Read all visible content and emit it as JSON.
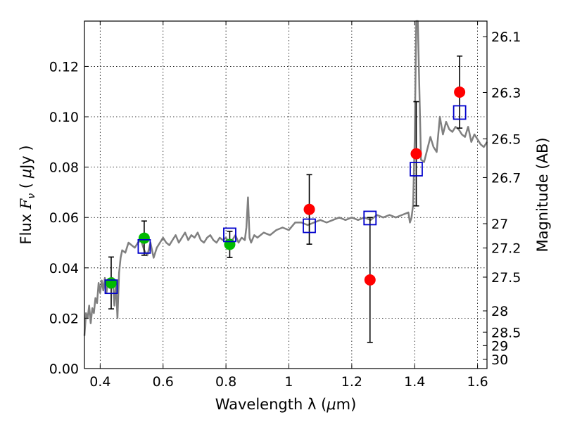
{
  "chart_data": {
    "type": "scatter",
    "title": "",
    "xlabel_prefix": "Wavelength  λ (",
    "xlabel_mu": "μ",
    "xlabel_suffix": "m)",
    "ylabel_prefix": "Flux  ",
    "ylabel_F": "F",
    "ylabel_nu": "ν",
    "ylabel_open": "  ( ",
    "ylabel_mu": "μ",
    "ylabel_suffix": "Jy )",
    "y2label": "Magnitude (AB)",
    "xlim": [
      0.35,
      1.63
    ],
    "ylim": [
      0.0,
      0.138
    ],
    "grid": true,
    "x_ticks": [
      {
        "v": 0.4,
        "label": "0.4"
      },
      {
        "v": 0.6,
        "label": "0.6"
      },
      {
        "v": 0.8,
        "label": "0.8"
      },
      {
        "v": 1.0,
        "label": "1"
      },
      {
        "v": 1.2,
        "label": "1.2"
      },
      {
        "v": 1.4,
        "label": "1.4"
      },
      {
        "v": 1.6,
        "label": "1.6"
      }
    ],
    "y_ticks": [
      {
        "v": 0.0,
        "label": "0.00"
      },
      {
        "v": 0.02,
        "label": "0.02"
      },
      {
        "v": 0.04,
        "label": "0.04"
      },
      {
        "v": 0.06,
        "label": "0.06"
      },
      {
        "v": 0.08,
        "label": "0.08"
      },
      {
        "v": 0.1,
        "label": "0.10"
      },
      {
        "v": 0.12,
        "label": "0.12"
      }
    ],
    "mag_ticks": [
      {
        "mag": 26.1,
        "label": "26.1"
      },
      {
        "mag": 26.3,
        "label": "26.3"
      },
      {
        "mag": 26.5,
        "label": "26.5"
      },
      {
        "mag": 26.7,
        "label": "26.7"
      },
      {
        "mag": 27.0,
        "label": "27"
      },
      {
        "mag": 27.2,
        "label": "27.2"
      },
      {
        "mag": 27.5,
        "label": "27.5"
      },
      {
        "mag": 28.0,
        "label": "28"
      },
      {
        "mag": 28.5,
        "label": "28.5"
      },
      {
        "mag": 29.0,
        "label": "29"
      },
      {
        "mag": 30.0,
        "label": "30"
      }
    ],
    "spectrum": {
      "color": "#808080",
      "x": [
        0.35,
        0.355,
        0.36,
        0.365,
        0.37,
        0.375,
        0.38,
        0.385,
        0.39,
        0.395,
        0.4,
        0.405,
        0.41,
        0.415,
        0.42,
        0.425,
        0.43,
        0.435,
        0.44,
        0.445,
        0.45,
        0.455,
        0.46,
        0.465,
        0.47,
        0.48,
        0.49,
        0.5,
        0.51,
        0.52,
        0.53,
        0.54,
        0.55,
        0.56,
        0.57,
        0.58,
        0.59,
        0.6,
        0.61,
        0.62,
        0.63,
        0.64,
        0.65,
        0.66,
        0.67,
        0.68,
        0.69,
        0.7,
        0.71,
        0.72,
        0.73,
        0.74,
        0.75,
        0.76,
        0.77,
        0.78,
        0.79,
        0.8,
        0.81,
        0.82,
        0.83,
        0.84,
        0.85,
        0.86,
        0.865,
        0.87,
        0.875,
        0.88,
        0.89,
        0.9,
        0.92,
        0.94,
        0.96,
        0.98,
        1.0,
        1.02,
        1.04,
        1.06,
        1.08,
        1.1,
        1.12,
        1.14,
        1.16,
        1.18,
        1.2,
        1.22,
        1.24,
        1.26,
        1.28,
        1.3,
        1.32,
        1.34,
        1.36,
        1.38,
        1.385,
        1.39,
        1.395,
        1.4,
        1.405,
        1.41,
        1.42,
        1.43,
        1.44,
        1.45,
        1.46,
        1.47,
        1.48,
        1.49,
        1.5,
        1.51,
        1.52,
        1.53,
        1.54,
        1.55,
        1.56,
        1.57,
        1.58,
        1.59,
        1.6,
        1.61,
        1.62,
        1.63
      ],
      "y": [
        0.013,
        0.022,
        0.02,
        0.025,
        0.018,
        0.024,
        0.022,
        0.028,
        0.026,
        0.034,
        0.03,
        0.035,
        0.031,
        0.036,
        0.03,
        0.035,
        0.032,
        0.034,
        0.036,
        0.025,
        0.034,
        0.02,
        0.038,
        0.044,
        0.047,
        0.046,
        0.05,
        0.049,
        0.048,
        0.05,
        0.051,
        0.047,
        0.045,
        0.05,
        0.044,
        0.048,
        0.05,
        0.052,
        0.05,
        0.049,
        0.051,
        0.053,
        0.05,
        0.052,
        0.054,
        0.051,
        0.053,
        0.052,
        0.054,
        0.051,
        0.05,
        0.052,
        0.053,
        0.051,
        0.05,
        0.052,
        0.051,
        0.052,
        0.05,
        0.051,
        0.053,
        0.05,
        0.052,
        0.051,
        0.056,
        0.068,
        0.052,
        0.05,
        0.053,
        0.052,
        0.054,
        0.053,
        0.055,
        0.056,
        0.055,
        0.058,
        0.058,
        0.057,
        0.058,
        0.059,
        0.058,
        0.059,
        0.06,
        0.059,
        0.06,
        0.059,
        0.06,
        0.059,
        0.061,
        0.06,
        0.061,
        0.06,
        0.061,
        0.062,
        0.058,
        0.06,
        0.065,
        0.09,
        0.138,
        0.138,
        0.083,
        0.082,
        0.087,
        0.092,
        0.088,
        0.086,
        0.1,
        0.093,
        0.098,
        0.095,
        0.094,
        0.096,
        0.095,
        0.093,
        0.092,
        0.096,
        0.09,
        0.093,
        0.091,
        0.089,
        0.088,
        0.09
      ]
    },
    "series": [
      {
        "color": "#00bb00",
        "marker": "circle",
        "points": [
          {
            "x": 0.435,
            "y": 0.034,
            "err": 0.0103
          },
          {
            "x": 0.54,
            "y": 0.0518,
            "err": 0.0068
          },
          {
            "x": 0.812,
            "y": 0.0493,
            "err": 0.0052
          }
        ]
      },
      {
        "color": "#ff0000",
        "marker": "circle",
        "points": [
          {
            "x": 1.065,
            "y": 0.0632,
            "err": 0.0138
          },
          {
            "x": 1.258,
            "y": 0.0352,
            "err": 0.0248
          },
          {
            "x": 1.405,
            "y": 0.0853,
            "err": 0.0207
          },
          {
            "x": 1.543,
            "y": 0.1098,
            "err": 0.0143
          }
        ]
      },
      {
        "color": "#0000cc",
        "marker": "square-open",
        "points": [
          {
            "x": 0.435,
            "y": 0.0325
          },
          {
            "x": 0.54,
            "y": 0.0485
          },
          {
            "x": 0.812,
            "y": 0.0531
          },
          {
            "x": 1.065,
            "y": 0.0567
          },
          {
            "x": 1.258,
            "y": 0.0598
          },
          {
            "x": 1.405,
            "y": 0.0792
          },
          {
            "x": 1.543,
            "y": 0.1017
          }
        ]
      }
    ]
  }
}
